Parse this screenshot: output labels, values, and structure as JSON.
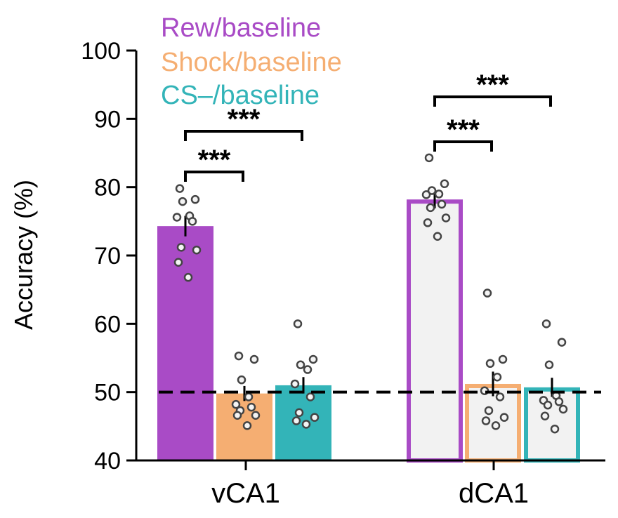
{
  "chart_data": {
    "type": "bar",
    "ylabel": "Accuracy (%)",
    "ylim": [
      40,
      100
    ],
    "yticks": [
      40,
      50,
      60,
      70,
      80,
      90,
      100
    ],
    "chance_level": 50,
    "legend_placement": "top-left",
    "categories": [
      "vCA1",
      "dCA1"
    ],
    "series": [
      {
        "name": "Rew/baseline",
        "color": "#a94bc6",
        "values": [
          74.3,
          78.2
        ],
        "errors": [
          1.5,
          1.3
        ],
        "points": [
          [
            79.8,
            78.2,
            77.9,
            75.8,
            75.6,
            75.0,
            71.2,
            70.8,
            69.0,
            66.8
          ],
          [
            84.3,
            80.5,
            79.5,
            79.0,
            78.9,
            77.5,
            77.0,
            75.5,
            74.8,
            72.8
          ]
        ]
      },
      {
        "name": "Shock/baseline",
        "color": "#f5ae72",
        "values": [
          49.8,
          51.2
        ],
        "errors": [
          1.1,
          1.8
        ],
        "points": [
          [
            55.3,
            54.8,
            51.8,
            49.3,
            48.2,
            47.8,
            47.3,
            46.6,
            46.6,
            45.1
          ],
          [
            64.5,
            54.8,
            54.2,
            52.2,
            50.2,
            49.3,
            47.3,
            46.3,
            45.8,
            45.1
          ]
        ]
      },
      {
        "name": "CS–/baseline",
        "color": "#33b4b8",
        "values": [
          51.0,
          50.7
        ],
        "errors": [
          1.2,
          1.4
        ],
        "points": [
          [
            60.0,
            54.8,
            54.0,
            53.3,
            51.2,
            49.3,
            47.0,
            46.3,
            45.8,
            45.3
          ],
          [
            60.0,
            57.3,
            54.0,
            49.5,
            48.8,
            48.6,
            48.1,
            47.5,
            46.5,
            44.6
          ]
        ]
      }
    ],
    "bar_styles": [
      "filled",
      "outlined"
    ],
    "significance": [
      {
        "group": 0,
        "from": 0,
        "to": 1,
        "label": "***"
      },
      {
        "group": 0,
        "from": 0,
        "to": 2,
        "label": "***"
      },
      {
        "group": 1,
        "from": 0,
        "to": 1,
        "label": "***"
      },
      {
        "group": 1,
        "from": 0,
        "to": 2,
        "label": "***"
      }
    ]
  }
}
